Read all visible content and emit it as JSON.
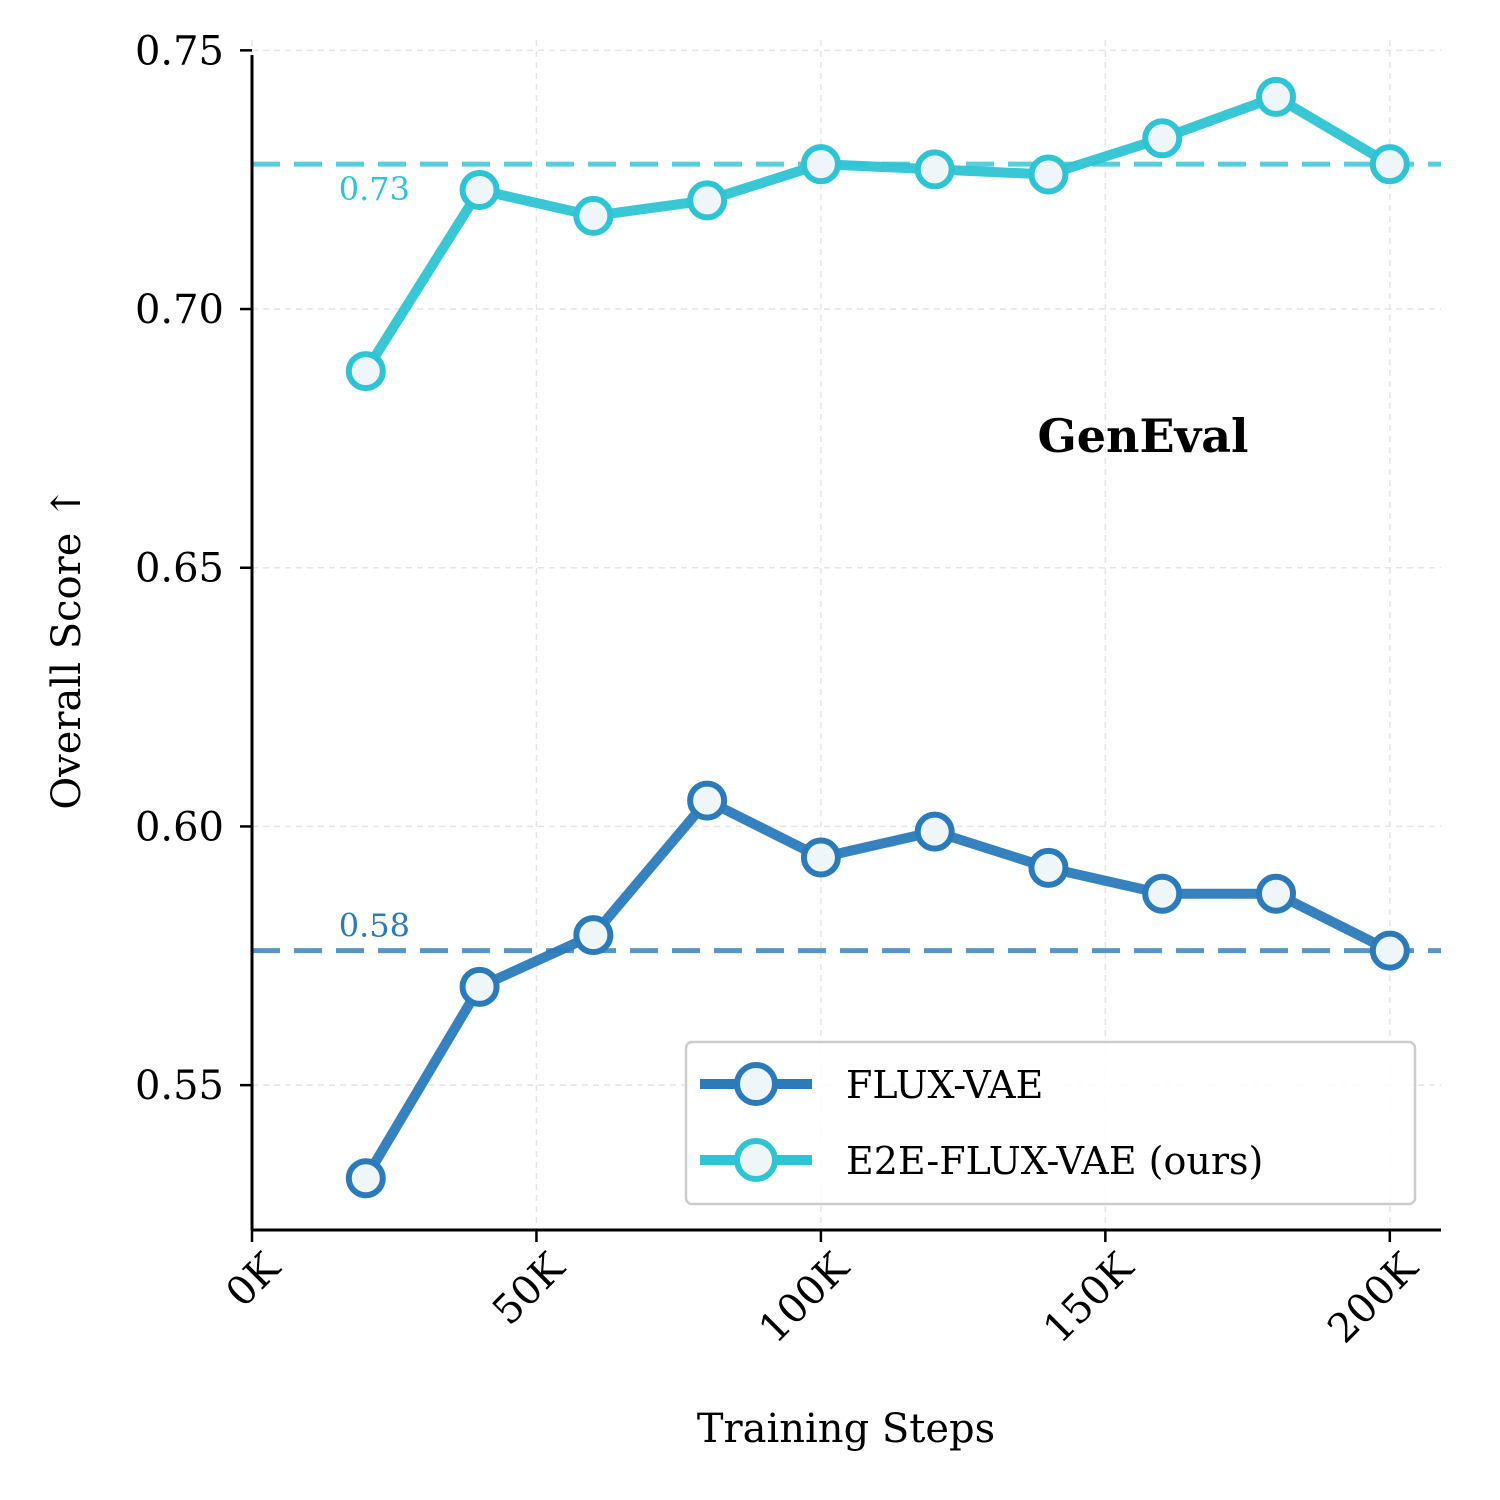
{
  "chart_data": {
    "type": "line",
    "title": "",
    "annotation": "GenEval",
    "xlabel": "Training Steps",
    "ylabel": "Overall Score ↑",
    "x": [
      20000,
      40000,
      60000,
      80000,
      100000,
      120000,
      140000,
      160000,
      180000,
      200000
    ],
    "xlim": [
      0,
      209000
    ],
    "ylim": [
      0.522,
      0.752
    ],
    "x_ticks": [
      0,
      50000,
      100000,
      150000,
      200000
    ],
    "x_tick_labels": [
      "0K",
      "50K",
      "100K",
      "150K",
      "200K"
    ],
    "y_ticks": [
      0.55,
      0.6,
      0.65,
      0.7,
      0.75
    ],
    "y_tick_labels": [
      "0.55",
      "0.60",
      "0.65",
      "0.70",
      "0.75"
    ],
    "grid": true,
    "legend_position": "lower-right",
    "series": [
      {
        "name": "FLUX-VAE",
        "color": "#2b7bba",
        "values": [
          0.532,
          0.569,
          0.579,
          0.605,
          0.594,
          0.599,
          0.592,
          0.587,
          0.587,
          0.576
        ]
      },
      {
        "name": "E2E-FLUX-VAE (ours)",
        "color": "#2ec4d3",
        "values": [
          0.688,
          0.723,
          0.718,
          0.721,
          0.728,
          0.727,
          0.726,
          0.733,
          0.741,
          0.728
        ]
      }
    ],
    "reference_lines": [
      {
        "value": 0.576,
        "label": "0.58",
        "color": "#2b7bba"
      },
      {
        "value": 0.728,
        "label": "0.73",
        "color": "#2ec4d3"
      }
    ]
  }
}
